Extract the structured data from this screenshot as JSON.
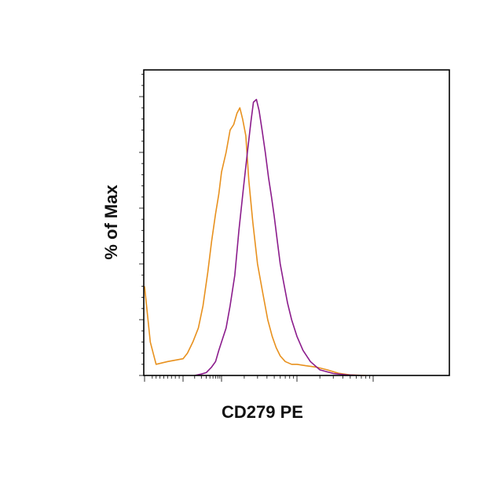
{
  "chart_data": {
    "type": "line",
    "title": "",
    "xlabel": "CD279 PE",
    "ylabel": "% of Max",
    "x_scale": "log",
    "xlim": [
      0,
      100000
    ],
    "ylim": [
      0,
      100
    ],
    "grid": false,
    "legend": "none",
    "series": [
      {
        "color": "#E8911E",
        "x": [
          0,
          15,
          30,
          60,
          100,
          130,
          180,
          250,
          330,
          440,
          550,
          700,
          850,
          1000,
          1150,
          1300,
          1450,
          1600,
          1750,
          1900,
          2100,
          2300,
          2600,
          3000,
          3500,
          4100,
          4700,
          5300,
          6000,
          7000,
          8500,
          10000,
          13000,
          18000,
          25000,
          35000,
          50000,
          80000
        ],
        "y": [
          32,
          12,
          4,
          5,
          6,
          8,
          12,
          17,
          25,
          37,
          48,
          58,
          65,
          73,
          80,
          88,
          90,
          94,
          96,
          92,
          86,
          70,
          55,
          40,
          30,
          20,
          14,
          10,
          7,
          5,
          4,
          4,
          3.5,
          3,
          2,
          0.8,
          0.2,
          0
        ]
      },
      {
        "color": "#8B1C8C",
        "x": [
          200,
          300,
          400,
          550,
          700,
          850,
          1000,
          1150,
          1300,
          1500,
          1700,
          1950,
          2200,
          2450,
          2650,
          2900,
          3150,
          3450,
          3800,
          4200,
          4600,
          5000,
          5500,
          6000,
          6700,
          7500,
          8500,
          10000,
          12000,
          15000,
          20000,
          30000,
          45000,
          70000
        ],
        "y": [
          0,
          0.5,
          1,
          3,
          5,
          9,
          12,
          17,
          25,
          36,
          52,
          67,
          80,
          91,
          98,
          99,
          95,
          88,
          80,
          71,
          64,
          57,
          48,
          40,
          33,
          26,
          20,
          14,
          9,
          5,
          2,
          0.7,
          0.2,
          0
        ]
      }
    ]
  }
}
